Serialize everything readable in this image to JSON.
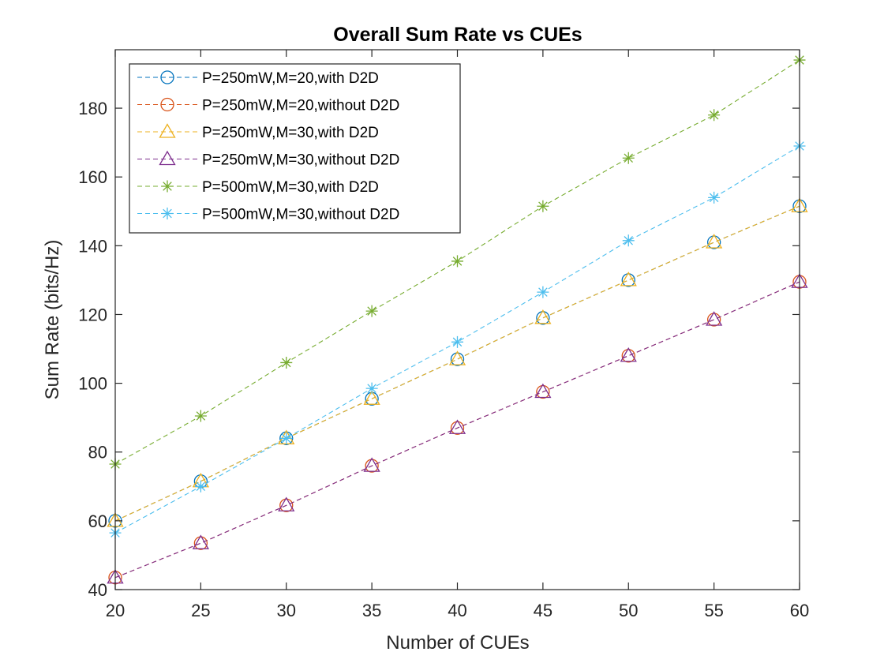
{
  "chart_data": {
    "type": "line",
    "title": "Overall Sum Rate vs CUEs",
    "xlabel": "Number of CUEs",
    "ylabel": "Sum Rate (bits/Hz)",
    "xlim": [
      20,
      60
    ],
    "ylim": [
      40,
      197
    ],
    "x_ticks": [
      20,
      25,
      30,
      35,
      40,
      45,
      50,
      55,
      60
    ],
    "y_ticks": [
      40,
      60,
      80,
      100,
      120,
      140,
      160,
      180
    ],
    "grid": false,
    "legend_position": "top-left",
    "x": [
      20,
      25,
      30,
      35,
      40,
      45,
      50,
      55,
      60
    ],
    "series": [
      {
        "name": "P=250mW,M=20,with D2D",
        "color": "#0072BD",
        "marker": "circle",
        "values": [
          60,
          71.5,
          84,
          95.5,
          107,
          119,
          130,
          141,
          151.5
        ]
      },
      {
        "name": "P=250mW,M=20,without D2D",
        "color": "#D95319",
        "marker": "circle",
        "values": [
          43.5,
          53.5,
          64.5,
          76,
          87,
          97.5,
          108,
          118.5,
          129.5
        ]
      },
      {
        "name": "P=250mW,M=30,with D2D",
        "color": "#EDB120",
        "marker": "triangle",
        "values": [
          60,
          71.5,
          84,
          95.5,
          107,
          119,
          130,
          141,
          151.5
        ]
      },
      {
        "name": "P=250mW,M=30,without D2D",
        "color": "#7E2F8E",
        "marker": "triangle",
        "values": [
          43.5,
          53.5,
          64.5,
          76,
          87,
          97.5,
          108,
          118.5,
          129.5
        ]
      },
      {
        "name": "P=500mW,M=30,with D2D",
        "color": "#77AC30",
        "marker": "asterisk",
        "values": [
          76.5,
          90.5,
          106,
          121,
          135.5,
          151.5,
          165.5,
          178,
          194
        ]
      },
      {
        "name": "P=500mW,M=30,without D2D",
        "color": "#4DBEEE",
        "marker": "asterisk",
        "values": [
          56.5,
          70,
          84,
          98.5,
          112,
          126.5,
          141.5,
          154,
          169
        ]
      }
    ]
  }
}
